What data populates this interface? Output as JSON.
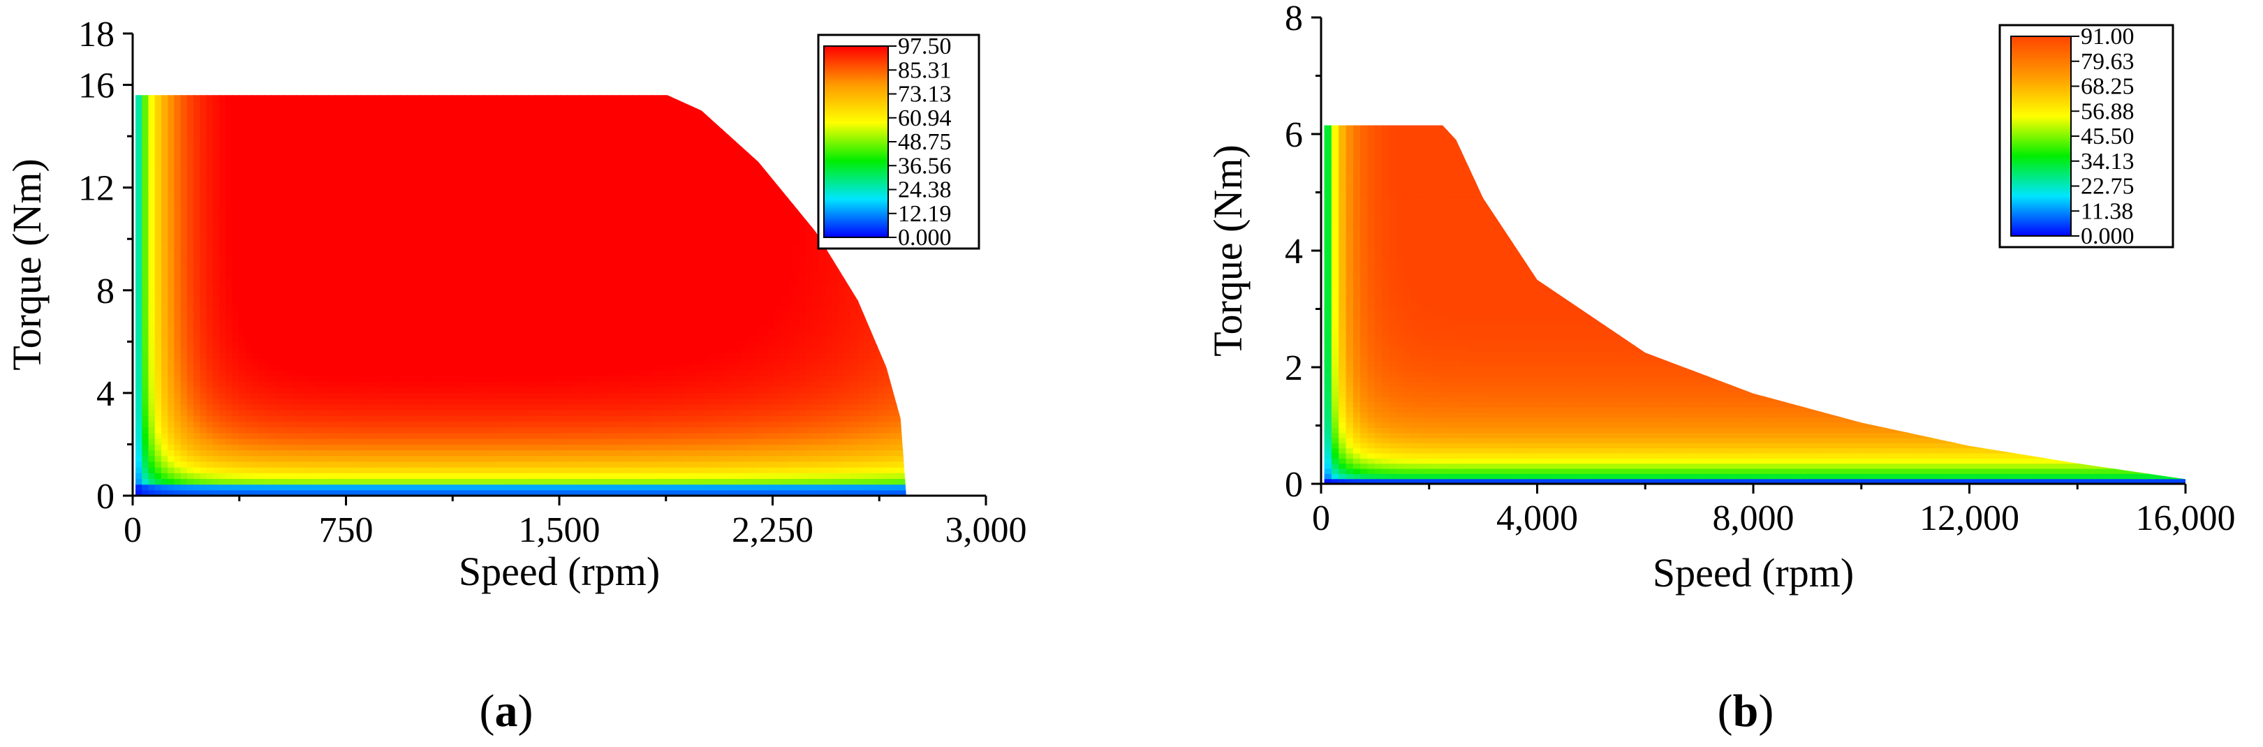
{
  "chart_data": [
    {
      "type": "contour",
      "panel": "a",
      "panel_label": {
        "open": "(",
        "letter": "a",
        "close": ")"
      },
      "xlabel": "Speed (rpm)",
      "ylabel": "Torque (Nm)",
      "xlim": [
        0,
        3000
      ],
      "ylim": [
        0,
        18
      ],
      "xticks": [
        0,
        750,
        1500,
        2250,
        3000
      ],
      "xtick_labels": [
        "0",
        "750",
        "1,500",
        "2,250",
        "3,000"
      ],
      "yticks": [
        0,
        4,
        8,
        12,
        16
      ],
      "ytick_labels": [
        "0",
        "4",
        "8",
        "12",
        "16",
        "18"
      ],
      "ytick_top": 18,
      "legend_levels": [
        "97.50",
        "85.31",
        "73.13",
        "60.94",
        "48.75",
        "36.56",
        "24.38",
        "12.19",
        "0.000"
      ],
      "max_torque": 15.6,
      "base_speed": 1880,
      "max_speed": 2720,
      "boundary": [
        [
          0,
          15.6
        ],
        [
          1880,
          15.6
        ],
        [
          2000,
          15.0
        ],
        [
          2200,
          13.0
        ],
        [
          2400,
          10.3
        ],
        [
          2550,
          7.6
        ],
        [
          2650,
          5.0
        ],
        [
          2700,
          3.0
        ],
        [
          2720,
          0
        ]
      ],
      "colors": [
        "#0000ff",
        "#00e5ff",
        "#00ee00",
        "#ffff00",
        "#ff9900",
        "#ff0000"
      ]
    },
    {
      "type": "contour",
      "panel": "b",
      "panel_label": {
        "open": "(",
        "letter": "b",
        "close": ")"
      },
      "xlabel": "Speed (rpm)",
      "ylabel": "Torque (Nm)",
      "xlim": [
        0,
        16000
      ],
      "ylim": [
        0,
        8
      ],
      "xticks": [
        0,
        4000,
        8000,
        12000,
        16000
      ],
      "xtick_labels": [
        "0",
        "4,000",
        "8,000",
        "12,000",
        "16,000"
      ],
      "yticks": [
        0,
        2,
        4,
        6,
        8
      ],
      "ytick_labels": [
        "0",
        "2",
        "4",
        "6",
        "8"
      ],
      "legend_levels": [
        "91.00",
        "79.63",
        "68.25",
        "56.88",
        "45.50",
        "34.13",
        "22.75",
        "11.38",
        "0.000"
      ],
      "max_torque": 6.15,
      "base_speed": 2250,
      "max_speed": 16000,
      "boundary": [
        [
          0,
          6.15
        ],
        [
          2250,
          6.15
        ],
        [
          2500,
          5.9
        ],
        [
          3000,
          4.9
        ],
        [
          4000,
          3.5
        ],
        [
          6000,
          2.25
        ],
        [
          8000,
          1.55
        ],
        [
          10000,
          1.05
        ],
        [
          12000,
          0.65
        ],
        [
          14000,
          0.35
        ],
        [
          16000,
          0.08
        ]
      ],
      "colors": [
        "#0000ff",
        "#00e5ff",
        "#00ee00",
        "#ffff00",
        "#ff9900",
        "#ff4500"
      ]
    }
  ]
}
